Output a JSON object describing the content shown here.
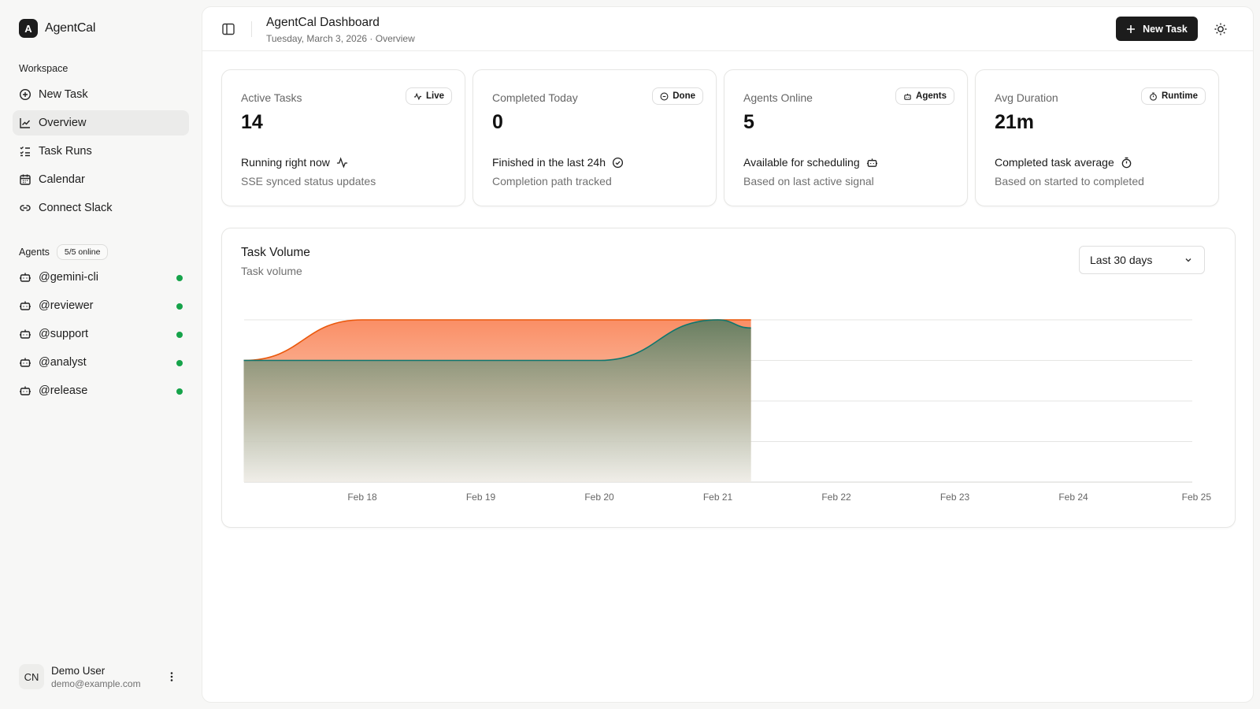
{
  "app": {
    "name": "AgentCal",
    "logo_letter": "A"
  },
  "sidebar": {
    "workspace_label": "Workspace",
    "nav": [
      {
        "label": "New Task",
        "icon": "plus-circle-icon"
      },
      {
        "label": "Overview",
        "icon": "chart-icon",
        "active": true
      },
      {
        "label": "Task Runs",
        "icon": "list-checks-icon"
      },
      {
        "label": "Calendar",
        "icon": "calendar-icon"
      },
      {
        "label": "Connect Slack",
        "icon": "link-icon"
      }
    ],
    "agents_label": "Agents",
    "agents_online": "5/5 online",
    "agents": [
      {
        "name": "@gemini-cli",
        "status": "online"
      },
      {
        "name": "@reviewer",
        "status": "online"
      },
      {
        "name": "@support",
        "status": "online"
      },
      {
        "name": "@analyst",
        "status": "online"
      },
      {
        "name": "@release",
        "status": "online"
      }
    ],
    "user": {
      "initials": "CN",
      "name": "Demo User",
      "email": "demo@example.com"
    }
  },
  "header": {
    "title": "AgentCal Dashboard",
    "subtitle": "Tuesday, March 3, 2026 · Overview",
    "new_task_label": "New Task"
  },
  "stats": [
    {
      "title": "Active Tasks",
      "badge": "Live",
      "badge_icon": "activity-icon",
      "value": "14",
      "line": "Running right now",
      "line_icon": "activity-icon",
      "foot": "SSE synced status updates"
    },
    {
      "title": "Completed Today",
      "badge": "Done",
      "badge_icon": "check-circle-icon",
      "value": "0",
      "line": "Finished in the last 24h",
      "line_icon": "check-circle-icon",
      "foot": "Completion path tracked"
    },
    {
      "title": "Agents Online",
      "badge": "Agents",
      "badge_icon": "bot-icon",
      "value": "5",
      "line": "Available for scheduling",
      "line_icon": "bot-icon",
      "foot": "Based on last active signal"
    },
    {
      "title": "Avg Duration",
      "badge": "Runtime",
      "badge_icon": "timer-icon",
      "value": "21m",
      "line": "Completed task average",
      "line_icon": "timer-icon",
      "foot": "Based on started to completed"
    }
  ],
  "chart_card": {
    "title": "Task Volume",
    "subtitle": "Task volume",
    "range_label": "Last 30 days"
  },
  "chart_data": {
    "type": "area",
    "x_ticks": [
      "Feb 18",
      "Feb 19",
      "Feb 20",
      "Feb 21",
      "Feb 22",
      "Feb 23",
      "Feb 24",
      "Feb 25"
    ],
    "ylim": [
      0,
      4
    ],
    "grid": true,
    "stacked": false,
    "series": [
      {
        "color": "#ea580c",
        "points": [
          [
            "Feb 17",
            3
          ],
          [
            "Feb 18",
            4
          ],
          [
            "Feb 19",
            4
          ],
          [
            "Feb 20",
            4
          ],
          [
            "Feb 21",
            4
          ],
          [
            "Feb 21.28",
            4
          ]
        ]
      },
      {
        "color": "#0f766e",
        "points": [
          [
            "Feb 17",
            3
          ],
          [
            "Feb 18",
            3
          ],
          [
            "Feb 19",
            3
          ],
          [
            "Feb 20",
            3
          ],
          [
            "Feb 21",
            4
          ],
          [
            "Feb 21.28",
            3.8
          ]
        ]
      }
    ]
  },
  "colors": {
    "accent": "#1c1c1c",
    "online": "#16a34a",
    "series_orange": "#ea580c",
    "series_teal": "#0f766e"
  }
}
